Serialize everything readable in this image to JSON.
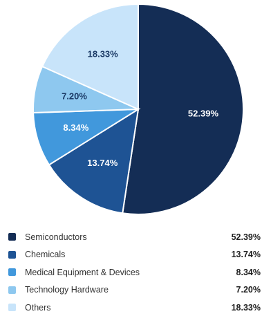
{
  "chart_data": {
    "type": "pie",
    "categories": [
      "Semiconductors",
      "Chemicals",
      "Medical Equipment & Devices",
      "Technology Hardware",
      "Others"
    ],
    "values": [
      52.39,
      13.74,
      8.34,
      7.2,
      18.33
    ],
    "labels": [
      "52.39%",
      "13.74%",
      "8.34%",
      "7.20%",
      "18.33%"
    ],
    "colors": [
      "#142d55",
      "#1e5394",
      "#4198dc",
      "#8ec8ef",
      "#c8e4fa"
    ],
    "label_colors": [
      "#ffffff",
      "#ffffff",
      "#ffffff",
      "#1b3a66",
      "#1b3a66"
    ],
    "legend_position": "bottom"
  }
}
